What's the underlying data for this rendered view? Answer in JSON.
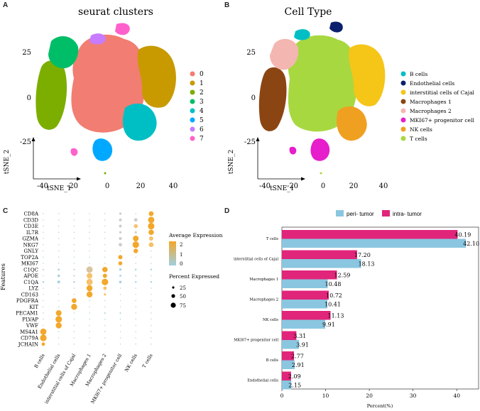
{
  "panels": {
    "a": "A",
    "b": "B",
    "c": "C",
    "d": "D"
  },
  "colors": {
    "teal": "#00BFC4",
    "navy": "#0A1F6E",
    "gold": "#F5C518",
    "brown": "#8B4513",
    "pink": "#F4B6B0",
    "magenta": "#E61ECB",
    "orange": "#F0A020",
    "green": "#A8D840",
    "peri_blue": "#8AC6E0",
    "intra_pink": "#E0257A",
    "seurat": [
      "#F27D72",
      "#C89A00",
      "#7CAE00",
      "#00BE67",
      "#00BFC4",
      "#00A9FF",
      "#C77CFF",
      "#FF61CC"
    ]
  },
  "chart_data": [
    {
      "type": "scatter",
      "title": "seurat clusters",
      "xlabel": "tSNE_1",
      "ylabel": "tSNE_2",
      "x_ticks": [
        "-40",
        "-20",
        "0",
        "20",
        "40"
      ],
      "y_ticks": [
        "25",
        "0",
        "-25"
      ],
      "legend": [
        "0",
        "1",
        "2",
        "3",
        "4",
        "5",
        "6",
        "7"
      ],
      "legend_position": "right"
    },
    {
      "type": "scatter",
      "title": "Cell Type",
      "xlabel": "tSNE_1",
      "ylabel": "tSNE_2",
      "x_ticks": [
        "-40",
        "-20",
        "0",
        "20",
        "40"
      ],
      "y_ticks": [
        "25",
        "0",
        "-25"
      ],
      "legend": [
        "B cells",
        "Endothelial cells",
        "interstitial cells of Cajal",
        "Macrophages 1",
        "Macrophages 2",
        "MKI67+ progenitor cell",
        "NK cells",
        "T cells"
      ],
      "legend_position": "right"
    },
    {
      "type": "dotplot",
      "ylabel": "Features",
      "genes": [
        "CD8A",
        "CD3D",
        "CD3E",
        "IL7R",
        "GZMA",
        "NKG7",
        "GNLY",
        "TOP2A",
        "MKI67",
        "C1QC",
        "APOE",
        "C1QA",
        "LYZ",
        "CD163",
        "PDGFRA",
        "KIT",
        "PECAM1",
        "PLVAP",
        "VWF",
        "MS4A1",
        "CD79A",
        "JCHAIN"
      ],
      "cell_types": [
        "B cells",
        "Endothelial cells",
        "interstitial cells of Cajal",
        "Macrophages 1",
        "Macrophages 2",
        "MKI67+ progenitor cell",
        "NK cells",
        "T cells"
      ],
      "legend_expression_title": "Average Expression",
      "legend_expression_ticks": [
        "2",
        "1",
        "0"
      ],
      "legend_percent_title": "Percent Expressed",
      "legend_percent_ticks": [
        "25",
        "50",
        "75"
      ]
    },
    {
      "type": "bar",
      "orientation": "horizontal",
      "xlabel": "Percent(%)",
      "x_ticks": [
        "0",
        "10",
        "20",
        "30",
        "40"
      ],
      "xlim": [
        0,
        45
      ],
      "categories": [
        "T cells",
        "interstitial cells of Cajal",
        "Macrophages 1",
        "Macrophages 2",
        "NK cells",
        "MKI67+ progenitor cell",
        "B cells",
        "Endothelial cells"
      ],
      "series": [
        {
          "name": "peri- tumor",
          "values": [
            42.1,
            18.13,
            10.48,
            10.41,
            9.91,
            3.91,
            2.91,
            2.15
          ],
          "labels": [
            "42.10",
            "18.13",
            "10.48",
            "10.41",
            "9.91",
            "3.91",
            "2.91",
            "2.15"
          ]
        },
        {
          "name": "intra- tumor",
          "values": [
            40.19,
            17.2,
            12.59,
            10.72,
            11.13,
            3.31,
            2.77,
            2.09
          ],
          "labels": [
            "40.19",
            "17.20",
            "12.59",
            "10.72",
            "11.13",
            "3.31",
            "2.77",
            "2.09"
          ]
        }
      ],
      "legend_position": "top"
    }
  ]
}
